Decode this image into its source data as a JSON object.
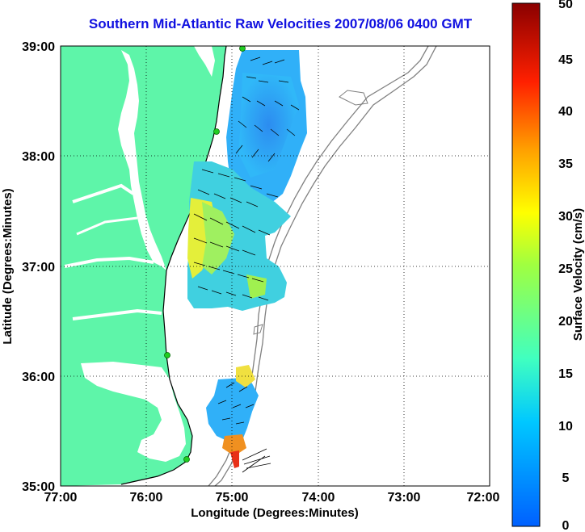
{
  "title": "Southern Mid-Atlantic Raw Velocities 2007/08/06 0400 GMT",
  "xaxis": {
    "label": "Longitude (Degrees:Minutes)",
    "ticks": [
      "77:00",
      "76:00",
      "75:00",
      "74:00",
      "73:00",
      "72:00"
    ]
  },
  "yaxis": {
    "label": "Latitude (Degrees:Minutes)",
    "ticks": [
      "39:00",
      "38:00",
      "37:00",
      "36:00",
      "35:00"
    ]
  },
  "colorbar": {
    "label": "Surface Velocity (cm/s)",
    "ticks": [
      "50",
      "45",
      "40",
      "35",
      "30",
      "25",
      "20",
      "15",
      "10",
      "5",
      "0"
    ],
    "min": 0,
    "max": 50,
    "colormap": "jet"
  },
  "map": {
    "lon_range": [
      -77,
      -72
    ],
    "lat_range": [
      35,
      39
    ],
    "land_color": "#5ef5a9",
    "water_color": "#ffffff",
    "bathymetry_color": "#808080",
    "grid": "dotted",
    "station_color": "#22cc22"
  }
}
